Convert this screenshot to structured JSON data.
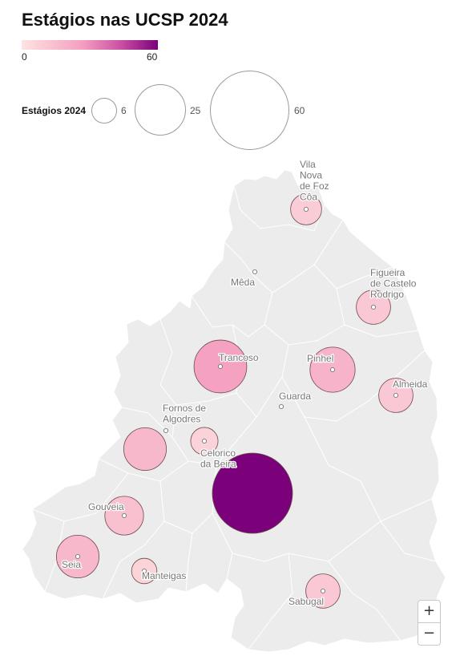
{
  "title": "Estágios nas UCSP 2024",
  "color_legend": {
    "min": "0",
    "max": "60",
    "colors": [
      "#fde4e1",
      "#f59ec0",
      "#c54aa0",
      "#7a017a"
    ]
  },
  "size_legend": {
    "label": "Estágios 2024",
    "values": [
      "6",
      "25",
      "60"
    ]
  },
  "map": {
    "land_color": "#ececec",
    "region_border_color": "#ffffff",
    "bubble_stroke": "#6b4a4a",
    "places": [
      {
        "id": "vila-nova-de-foz-coa",
        "label": [
          "Vila",
          "Nova",
          "de Foz",
          "Côa"
        ],
        "value": 9
      },
      {
        "id": "meda",
        "label": [
          "Mêda"
        ],
        "value": null
      },
      {
        "id": "figueira-de-castelo-rodrigo",
        "label": [
          "Figueira",
          "de Castelo",
          "Rodrigo"
        ],
        "value": 11
      },
      {
        "id": "trancoso",
        "label": [
          "Trancoso"
        ],
        "value": 26
      },
      {
        "id": "pinhel",
        "label": [
          "Pinhel"
        ],
        "value": 19
      },
      {
        "id": "almeida",
        "label": [
          "Almeida"
        ],
        "value": 11
      },
      {
        "id": "guarda",
        "label": [
          "Guarda"
        ],
        "value": null
      },
      {
        "id": "fornos-de-algodres",
        "label": [
          "Fornos de",
          "Algodres"
        ],
        "value": null
      },
      {
        "id": "fornos-unlabelled",
        "label": [],
        "value": 17
      },
      {
        "id": "celorico-da-beira",
        "label": [
          "Celorico",
          "da Beira"
        ],
        "value": 7
      },
      {
        "id": "guarda-main",
        "label": [],
        "value": 60
      },
      {
        "id": "gouveia",
        "label": [
          "Gouveia"
        ],
        "value": 14
      },
      {
        "id": "seia",
        "label": [
          "Seia"
        ],
        "value": 17
      },
      {
        "id": "manteigas",
        "label": [
          "Manteigas"
        ],
        "value": 6
      },
      {
        "id": "sabugal",
        "label": [
          "Sabugal"
        ],
        "value": 11
      }
    ]
  },
  "zoom": {
    "in_label": "+",
    "out_label": "−"
  }
}
